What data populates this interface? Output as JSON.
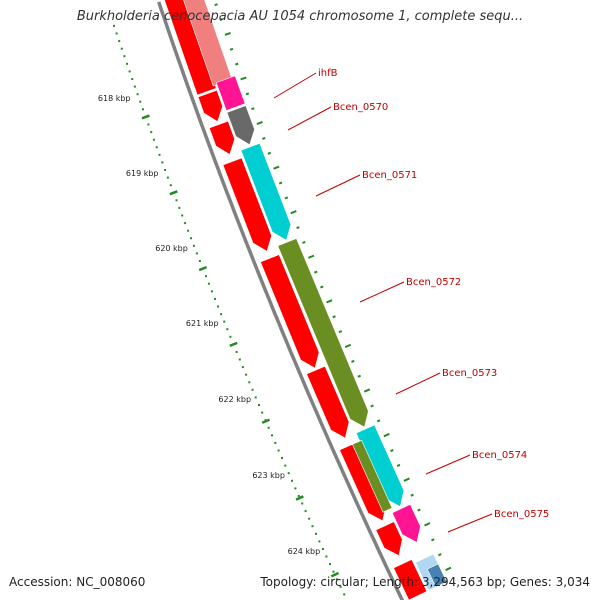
{
  "header": {
    "title": "Burkholderia cenocepacia AU 1054 chromosome 1, complete sequ..."
  },
  "footer": {
    "accession": "Accession: NC_008060",
    "summary": "Topology: circular; Length: 3,294,563 bp; Genes: 3,034"
  },
  "scale": {
    "tick_labels": [
      "618 kbp",
      "619 kbp",
      "620 kbp",
      "621 kbp",
      "622 kbp",
      "623 kbp",
      "624 kbp"
    ]
  },
  "genes": [
    {
      "name": "ihfB",
      "color": "#ff1493"
    },
    {
      "name": "Bcen_0570",
      "color": "#696969"
    },
    {
      "name": "Bcen_0571",
      "color": "#00ced1"
    },
    {
      "name": "Bcen_0572",
      "color": "#6b8e23"
    },
    {
      "name": "Bcen_0573",
      "color": "#6b8e23"
    },
    {
      "name": "Bcen_0574",
      "color": "#00ced1"
    },
    {
      "name": "Bcen_0575",
      "color": "#ff1493"
    }
  ],
  "colors": {
    "cds": "#ff0000",
    "backbone": "#808080",
    "gc_ticks": "#228b22",
    "label": "#c00000"
  }
}
